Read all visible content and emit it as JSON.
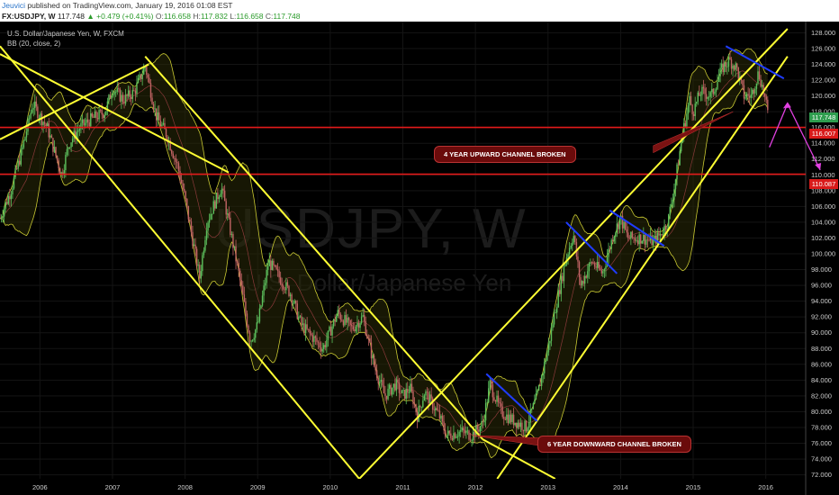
{
  "header": {
    "author": "Jeuvici",
    "published_text": "published on TradingView.com, January 19, 2016 01:08 EST",
    "symbol": "FX:USDJPY, W",
    "last": "117.748",
    "change": "+0.479 (+0.41%)",
    "open_label": "O:",
    "open": "116.658",
    "high_label": "H:",
    "high": "117.832",
    "low_label": "L:",
    "low": "116.658",
    "close_label": "C:",
    "close": "117.748"
  },
  "chart_info": {
    "instrument": "U.S. Dollar/Japanese Yen, W, FXCM",
    "indicator": "BB (20, close, 2)"
  },
  "watermark": {
    "symbol": "USDJPY, W",
    "description": "U.S. Dollar/Japanese Yen"
  },
  "annotations": {
    "upward_broken": "4 YEAR UPWARD CHANNEL BROKEN",
    "downward_broken": "6 YEAR DOWNWARD CHANNEL BROKEN"
  },
  "price_labels": {
    "current": "117.748",
    "line1": "116.007",
    "line2": "110.087"
  },
  "colors": {
    "background": "#000000",
    "up_candle": "#5cbf5c",
    "down_candle": "#c26464",
    "channel": "#ffff33",
    "horizontal": "#e31a1a",
    "bands": "#c8c832",
    "trend_short": "#1f3cff",
    "projection": "#e040e0"
  },
  "chart_data": {
    "type": "candlestick",
    "title": "U.S. Dollar/Japanese Yen, W, FXCM",
    "x_tick_labels": [
      "2006",
      "2007",
      "2008",
      "2009",
      "2010",
      "2011",
      "2012",
      "2013",
      "2014",
      "2015",
      "2016"
    ],
    "y_tick_labels": [
      "72.000",
      "74.000",
      "76.000",
      "78.000",
      "80.000",
      "82.000",
      "84.000",
      "86.000",
      "88.000",
      "90.000",
      "92.000",
      "94.000",
      "96.000",
      "98.000",
      "100.000",
      "102.000",
      "104.000",
      "106.000",
      "108.000",
      "110.000",
      "112.000",
      "114.000",
      "116.000",
      "118.000",
      "120.000",
      "122.000",
      "124.000",
      "126.000",
      "128.000"
    ],
    "ylim": [
      71.5,
      128.5
    ],
    "xlim": [
      2005.45,
      2016.55
    ],
    "horizontal_levels": [
      116.007,
      110.087
    ],
    "current_price": 117.748,
    "price_path": [
      [
        2005.45,
        104.5
      ],
      [
        2005.6,
        108.0
      ],
      [
        2005.75,
        113.0
      ],
      [
        2005.9,
        119.0
      ],
      [
        2006.0,
        117.5
      ],
      [
        2006.1,
        116.0
      ],
      [
        2006.3,
        110.0
      ],
      [
        2006.4,
        114.0
      ],
      [
        2006.55,
        116.0
      ],
      [
        2006.7,
        117.0
      ],
      [
        2006.9,
        118.0
      ],
      [
        2007.0,
        121.0
      ],
      [
        2007.15,
        119.5
      ],
      [
        2007.3,
        120.5
      ],
      [
        2007.45,
        123.8
      ],
      [
        2007.6,
        117.5
      ],
      [
        2007.75,
        115.0
      ],
      [
        2007.9,
        111.0
      ],
      [
        2008.0,
        107.0
      ],
      [
        2008.2,
        97.0
      ],
      [
        2008.3,
        104.0
      ],
      [
        2008.5,
        108.5
      ],
      [
        2008.6,
        104.0
      ],
      [
        2008.75,
        97.0
      ],
      [
        2008.9,
        89.0
      ],
      [
        2009.0,
        91.0
      ],
      [
        2009.15,
        99.0
      ],
      [
        2009.3,
        97.0
      ],
      [
        2009.45,
        95.0
      ],
      [
        2009.6,
        91.0
      ],
      [
        2009.9,
        88.0
      ],
      [
        2010.1,
        92.5
      ],
      [
        2010.3,
        90.5
      ],
      [
        2010.45,
        92.0
      ],
      [
        2010.6,
        86.0
      ],
      [
        2010.75,
        82.0
      ],
      [
        2010.9,
        83.5
      ],
      [
        2011.0,
        82.0
      ],
      [
        2011.1,
        83.0
      ],
      [
        2011.2,
        79.5
      ],
      [
        2011.3,
        82.5
      ],
      [
        2011.5,
        79.5
      ],
      [
        2011.6,
        77.0
      ],
      [
        2011.8,
        77.5
      ],
      [
        2011.95,
        77.0
      ],
      [
        2012.1,
        78.5
      ],
      [
        2012.2,
        83.5
      ],
      [
        2012.35,
        80.0
      ],
      [
        2012.5,
        79.0
      ],
      [
        2012.7,
        78.0
      ],
      [
        2012.85,
        82.0
      ],
      [
        2013.0,
        88.0
      ],
      [
        2013.1,
        93.0
      ],
      [
        2013.25,
        99.5
      ],
      [
        2013.35,
        102.5
      ],
      [
        2013.45,
        96.0
      ],
      [
        2013.6,
        99.0
      ],
      [
        2013.75,
        97.5
      ],
      [
        2013.9,
        102.5
      ],
      [
        2014.0,
        104.5
      ],
      [
        2014.1,
        102.0
      ],
      [
        2014.3,
        102.0
      ],
      [
        2014.45,
        101.5
      ],
      [
        2014.55,
        102.5
      ],
      [
        2014.65,
        104.0
      ],
      [
        2014.75,
        109.0
      ],
      [
        2014.85,
        115.0
      ],
      [
        2014.95,
        119.5
      ],
      [
        2015.0,
        118.0
      ],
      [
        2015.1,
        120.5
      ],
      [
        2015.25,
        120.0
      ],
      [
        2015.4,
        123.5
      ],
      [
        2015.5,
        124.5
      ],
      [
        2015.6,
        123.5
      ],
      [
        2015.7,
        120.0
      ],
      [
        2015.8,
        120.0
      ],
      [
        2015.9,
        123.0
      ],
      [
        2015.97,
        120.5
      ],
      [
        2016.03,
        117.7
      ]
    ],
    "channels": [
      {
        "name": "downward-upper",
        "points": [
          [
            2005.45,
            125.3
          ],
          [
            2008.6,
            110.3
          ]
        ]
      },
      {
        "name": "downward-top-left",
        "points": [
          [
            2005.45,
            114.5
          ],
          [
            2007.5,
            124.0
          ]
        ]
      },
      {
        "name": "downward-left",
        "points": [
          [
            2005.45,
            126.3
          ],
          [
            2010.4,
            71.5
          ]
        ]
      },
      {
        "name": "downward-right",
        "points": [
          [
            2007.45,
            125.0
          ],
          [
            2012.1,
            76.5
          ]
        ]
      },
      {
        "name": "downward-right-ext",
        "points": [
          [
            2012.1,
            76.5
          ],
          [
            2013.1,
            71.5
          ]
        ]
      },
      {
        "name": "upward-lower-left",
        "points": [
          [
            2010.4,
            71.5
          ],
          [
            2016.3,
            128.5
          ]
        ]
      },
      {
        "name": "upward-lower",
        "points": [
          [
            2012.3,
            71.5
          ],
          [
            2016.3,
            125.0
          ]
        ]
      }
    ],
    "short_trends": [
      {
        "points": [
          [
            2012.15,
            84.8
          ],
          [
            2012.85,
            78.8
          ]
        ]
      },
      {
        "points": [
          [
            2013.25,
            104.0
          ],
          [
            2013.95,
            97.5
          ]
        ]
      },
      {
        "points": [
          [
            2013.85,
            105.5
          ],
          [
            2014.6,
            101.0
          ]
        ]
      },
      {
        "points": [
          [
            2015.45,
            126.3
          ],
          [
            2016.25,
            122.2
          ]
        ]
      }
    ],
    "projection": {
      "points": [
        [
          2016.05,
          113.5
        ],
        [
          2016.3,
          119.0
        ],
        [
          2016.75,
          110.6
        ]
      ]
    },
    "grid": true
  }
}
